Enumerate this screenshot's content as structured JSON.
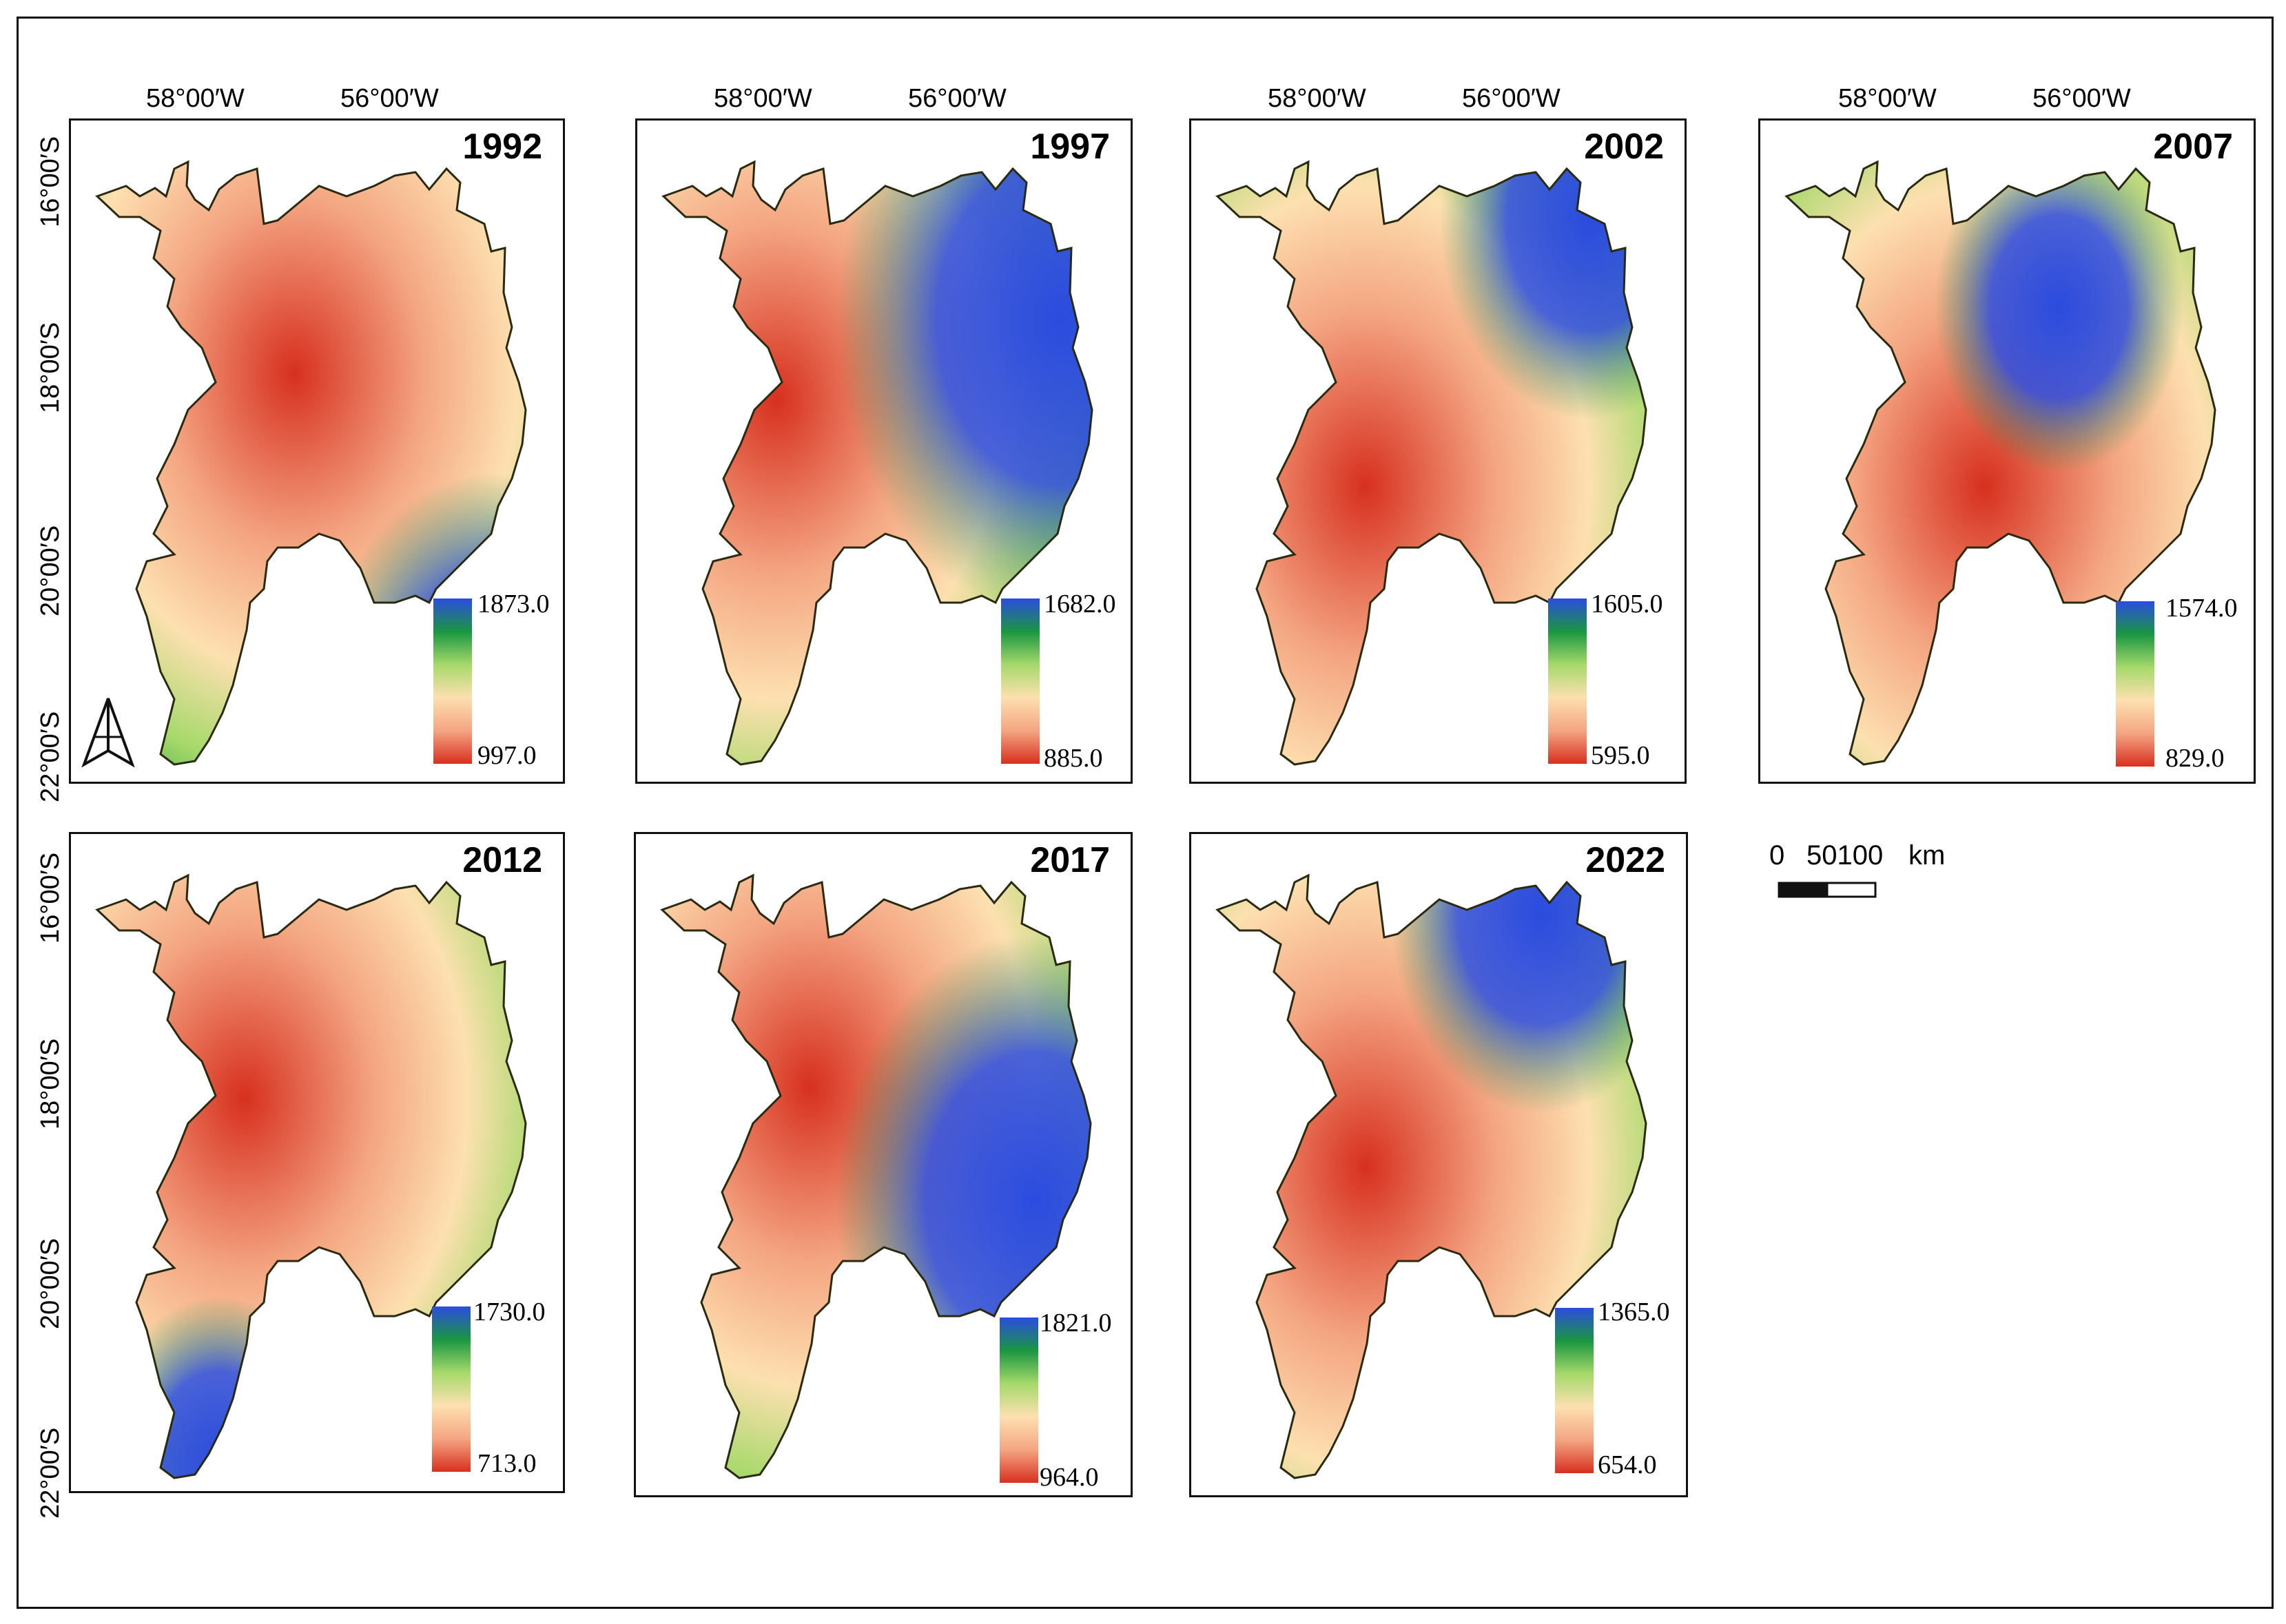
{
  "map": {
    "legend_colors": [
      "#d7301f",
      "#f4a582",
      "#fde0b0",
      "#a6d96a",
      "#1a9641",
      "#2b4cdf"
    ],
    "longitude_labels": [
      "58°00′W",
      "56°00′W"
    ],
    "latitude_labels": [
      "16°00′S",
      "18°00′S",
      "20°00′S",
      "22°00′S"
    ],
    "scale": {
      "zero": "0",
      "ticks": "50100",
      "unit": "km"
    },
    "north_arrow": "north-arrow-icon",
    "panels": [
      {
        "year": "1992",
        "max": "1873.0",
        "min": "997.0"
      },
      {
        "year": "1997",
        "max": "1682.0",
        "min": "885.0"
      },
      {
        "year": "2002",
        "max": "1605.0",
        "min": "595.0"
      },
      {
        "year": "2007",
        "max": "1574.0",
        "min": "829.0"
      },
      {
        "year": "2012",
        "max": "1730.0",
        "min": "713.0"
      },
      {
        "year": "2017",
        "max": "1821.0",
        "min": "964.0"
      },
      {
        "year": "2022",
        "max": "1365.0",
        "min": "654.0"
      }
    ]
  }
}
